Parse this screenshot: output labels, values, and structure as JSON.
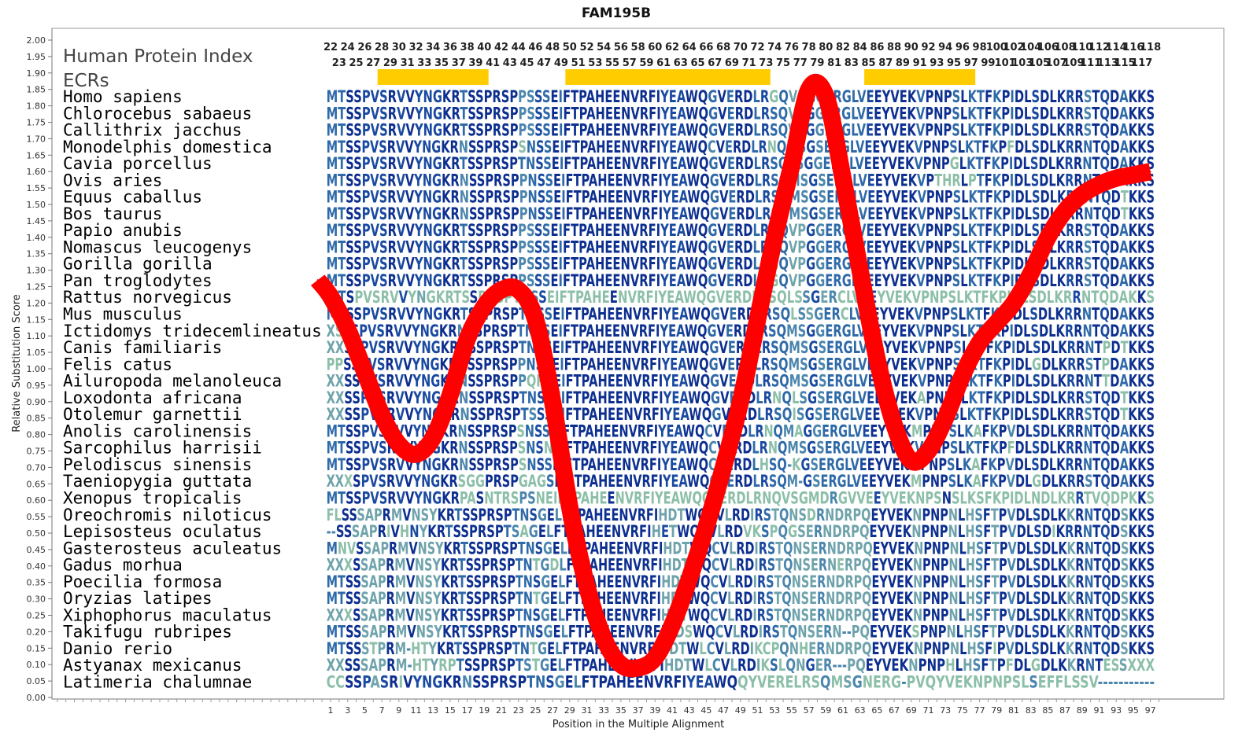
{
  "chart_data": {
    "type": "line",
    "title": "FAM195B",
    "xlabel": "Position in the Multiple Alignment",
    "ylabel": "Relative Substitution Score",
    "ylim": [
      0,
      2.0
    ],
    "xlim": [
      1,
      97
    ],
    "y_ticks": [
      "0.00",
      "0.05",
      "0.10",
      "0.15",
      "0.20",
      "0.25",
      "0.30",
      "0.35",
      "0.40",
      "0.45",
      "0.50",
      "0.55",
      "0.60",
      "0.65",
      "0.70",
      "0.75",
      "0.80",
      "0.85",
      "0.90",
      "0.95",
      "1.00",
      "1.05",
      "1.10",
      "1.15",
      "1.20",
      "1.25",
      "1.30",
      "1.35",
      "1.40",
      "1.45",
      "1.50",
      "1.55",
      "1.60",
      "1.65",
      "1.70",
      "1.75",
      "1.80",
      "1.85",
      "1.90",
      "1.95",
      "2.00"
    ],
    "x_ticks": [
      "1",
      "3",
      "5",
      "7",
      "9",
      "11",
      "13",
      "15",
      "17",
      "19",
      "21",
      "23",
      "25",
      "27",
      "29",
      "31",
      "33",
      "35",
      "37",
      "39",
      "41",
      "43",
      "45",
      "47",
      "49",
      "51",
      "53",
      "55",
      "57",
      "59",
      "61",
      "63",
      "65",
      "67",
      "69",
      "71",
      "73",
      "75",
      "77",
      "79",
      "81",
      "83",
      "85",
      "87",
      "89",
      "91",
      "93",
      "95",
      "97"
    ],
    "series": [
      {
        "color": "#ff0000",
        "x": [
          -0.5,
          1,
          3,
          5,
          7,
          9,
          11,
          13,
          15,
          17,
          19,
          21,
          23,
          25,
          27,
          29,
          31,
          33,
          35,
          37,
          39,
          41,
          43,
          45,
          47,
          49,
          51,
          53,
          55,
          57,
          59,
          61,
          63,
          65,
          67,
          69,
          71,
          73,
          75,
          77,
          79,
          81,
          83,
          85,
          87,
          89,
          91,
          93,
          95,
          97
        ],
        "values": [
          1.27,
          1.22,
          1.12,
          0.99,
          0.86,
          0.77,
          0.74,
          0.79,
          0.92,
          1.09,
          1.19,
          1.24,
          1.24,
          1.15,
          0.9,
          0.58,
          0.34,
          0.18,
          0.1,
          0.09,
          0.12,
          0.22,
          0.36,
          0.52,
          0.7,
          0.9,
          1.15,
          1.4,
          1.62,
          1.85,
          1.83,
          1.58,
          1.3,
          1.03,
          0.83,
          0.72,
          0.75,
          0.85,
          0.98,
          1.08,
          1.14,
          1.2,
          1.29,
          1.4,
          1.48,
          1.53,
          1.56,
          1.58,
          1.59,
          1.6
        ]
      }
    ],
    "grid": false
  },
  "header": {
    "index_label": "Human Protein Index",
    "ecr_label": "ECRs",
    "index_top": [
      "22",
      "24",
      "26",
      "28",
      "30",
      "32",
      "34",
      "36",
      "38",
      "40",
      "42",
      "44",
      "46",
      "48",
      "50",
      "52",
      "54",
      "56",
      "58",
      "60",
      "62",
      "64",
      "66",
      "68",
      "70",
      "72",
      "74",
      "76",
      "78",
      "80",
      "82",
      "84",
      "86",
      "88",
      "90",
      "92",
      "94",
      "96",
      "98",
      "100",
      "102",
      "104",
      "106",
      "108",
      "110",
      "112",
      "114",
      "116",
      "118"
    ],
    "index_bottom": [
      "23",
      "25",
      "27",
      "29",
      "31",
      "33",
      "35",
      "37",
      "39",
      "41",
      "43",
      "45",
      "47",
      "49",
      "51",
      "53",
      "55",
      "57",
      "59",
      "61",
      "63",
      "65",
      "67",
      "69",
      "71",
      "73",
      "75",
      "77",
      "79",
      "81",
      "83",
      "85",
      "87",
      "89",
      "91",
      "93",
      "95",
      "97",
      "99",
      "101",
      "103",
      "105",
      "107",
      "109",
      "111",
      "113",
      "115",
      "117"
    ],
    "ecr_color": "#ffcc00",
    "ecrs": [
      {
        "start": 7,
        "end": 19
      },
      {
        "start": 29,
        "end": 52
      },
      {
        "start": 64,
        "end": 76
      }
    ]
  },
  "alignment": [
    {
      "species": "Homo sapiens",
      "seq": "MTSSPVSRVVYNGKRTSSPRSPPSSSEIFTPAHEENVRFIYEAWQGVERDLRGQVPGGERGLVEEYVEKVPNPSLKTFKPIDLSDLKRRSTQDAKKS"
    },
    {
      "species": "Chlorocebus sabaeus",
      "seq": "MTSSPVSRVVYNGKRTSSPRSPPSSSEIFTPAHEENVRFIYEAWQGVERDLRSQVPGGERGLVEEYVEKVPNPSLKTFKPIDLSDLKRRSTQDAKKS"
    },
    {
      "species": "Callithrix jacchus",
      "seq": "MTSSPVSRVVYNGKRTSSPRSPPSSSEIFTPAHEENVRFIYEAWQGVERDLRSQVPGGERGLVEEYVEKVPNPSLKTFKPIDLSDLKRRSTQDAKKS"
    },
    {
      "species": "Monodelphis domestica",
      "seq": "MTSSPVSRVVYNGKRNSSPRSPSNSSEIFTPAHEENVRFIYEAWQCVERDLRNQMSGSERGLVEEYVEKVPNPSLKTFKPFDLSDLKRRNTQDAKKS"
    },
    {
      "species": "Cavia porcellus",
      "seq": "MTSSPVSRVVYNGKRTSSPRSPTNSSEIFTPAHEENVRFIYEAWQGVERDLRSQLSGGERGLVEEYVEKVPNPGLKTFKPIDLSDLKRRNTQDAKKS"
    },
    {
      "species": "Ovis aries",
      "seq": "MTSSPVSRVVYNGKRNSSPRSPPNSSEIFTPAHEENVRFIYEAWQGVERDLRSQMSGSERGLVEEYVEKVPTHRLPTFKPIDLSDLKRRNTQDAKKS"
    },
    {
      "species": "Equus caballus",
      "seq": "MTSSPVSRVVYNGKRNSSPRSPPNSSEIFTPAHEENVRFIYEAWQGVERDLRSQMSGSERGLVEEYVEKVPNPSLKTFKPIDLSDLKRRNTQDTKKS"
    },
    {
      "species": "Bos taurus",
      "seq": "MTSSPVSRVVYNGKRNSSPRSPPNSSEIFTPAHEENVRFIYEAWQGVERDLRSQMSGSERGLVEEYVEKVPNPSLKTFKPIDLSDLKRRNTQDTKKS"
    },
    {
      "species": "Papio anubis",
      "seq": "MTSSPVSRVVYNGKRTSSPRSPPSSSEIFTPAHEENVRFIYEAWQGVERDLRGQVPGGERGLVEEYVEKVPNPSLKTFKPIDLSDLKRRSTQDAKKS"
    },
    {
      "species": "Nomascus leucogenys",
      "seq": "MTSSPVSRVVYNGKRTSSPRSPPSSSEIFTPAHEENVRFIYEAWQGVERDLRGQVPGGERGLVEEYVEKVPNPSLKTFKPIDLSDLKRRSTQDAKKS"
    },
    {
      "species": "Gorilla gorilla",
      "seq": "MTSSPVSRVVYNGKRTSSPRSPPSSSEIFTPAHEENVRFIYEAWQGVERDLRGQVPGGERGLVEEYVEKVPNPSLKTFKPIDLSDLKRRSTQDAKKS"
    },
    {
      "species": "Pan troglodytes",
      "seq": "MTSSPVSRVVYNGKRTSSPRSPPSSSEIFTPAHEENVRFIYEAWQGVERDLRGQVPGGERGLVEEYVEKVPNPSLKTFKPIDLSDLKRRSTQDAKKS"
    },
    {
      "species": "Rattus norvegicus",
      "seq": "MTSPVSRVVYNGKRTSSPRSPTNSSEIFTPAHEENVRFIYEAWQGVERDLRSQLSSGERCLVEEYVEKVPNPSLKTFKPIDLSDLKRRNTQDAKKS"
    },
    {
      "species": "Mus musculus",
      "seq": "MTSSPVSRVVYNGKRTSSPRSPTNSSEIFTPAHEENVRFIYEAWQGVERDLRSQLSSGERCLVEEYVEKVPNPSLKTFKPIDLSDLKRRNTQDAKKS"
    },
    {
      "species": "Ictidomys tridecemlineatus",
      "seq": "XSSSPVSRVVYNGKRNSSPRSPTNSSEIFTPAHEENVRFIYEAWQGVERDLRSQMSGGERGLVEEYVEKVPNPSLKTFKPIDLSDLKRRNTQDAKKS"
    },
    {
      "species": "Canis familiaris",
      "seq": "XXSSPVSRVVYNGKRNSSPRSPTNSSEIFTPAHEENVRFIYEAWQGVERDLRSQMSGSERGLVEEYVEKVPNPSLKTFKPIDLSDLKRRNTPDTKKS"
    },
    {
      "species": "Felis catus",
      "seq": "PPSSPVSRVVYNGKRNSSPRSPPNSSEIFTPAHEENVRFIYEAWQGVERDLRSQMSGSERGLVEEYVEKVPNPSLKTFKPIDLGDLKRRSTPDAKKS"
    },
    {
      "species": "Ailuropoda melanoleuca",
      "seq": "XXSSPVSRVVYNGKRNSSPRSPPQRSEIFTPAHEENVRFIYEAWQGVERDLRSQMSGSERGLVEEYVEKVPNPSLKTFKPIDLSDLKRRNTTDAKKS"
    },
    {
      "species": "Loxodonta africana",
      "seq": "XXSSPVSRVVYNGKRNSSPRSPTNSSEIFTPAHEENVRFIYEAWQGVERDLRNQLSGSERGLVEEYVEKAPNPSLKTFKPIDLSDLKRRSTQDTKKS"
    },
    {
      "species": "Otolemur garnettii",
      "seq": "XXSSPVSRVVYNGKRNSSPRSPTSSSEIFTPAHEENVRFIYEAWQGVERDLRSQISGSERGLVEEYVEKVPNPSLKTFKPIDLSDLKRRSTQDTKKS"
    },
    {
      "species": "Anolis carolinensis",
      "seq": "MTSSPVSRVVYNGKRNSSPRSPSNSSEIFTPAHEENVRFIYEAWQCVERDLRNQMAGGERGLVEEYVEKMPNPSLKAFKPVDLSDLKRRNTQDAKKS"
    },
    {
      "species": "Sarcophilus harrisii",
      "seq": "MTSSPVSRVVYNGKRNSSPRSPSNSNEIFTPAHEENVRFIYEAWQCVERDLRNQMSGSERGLVEEYVEKVPNPSLKTFKPFDLSDLKRRNTQDAKKS"
    },
    {
      "species": "Pelodiscus sinensis",
      "seq": "MTSSPVSRVVYNGKRNSSPRSPSNSSEIFTPAHEENVRFIYEAWQCVERDLHSQ-KGSERGLVEEYVEKMPNPSLKAFKPVDLSDLKRRNTQDAKKS"
    },
    {
      "species": "Taeniopygia guttata",
      "seq": "XXXSPVSRVVYNGKRSGGPRSPGAGSEIFTPAHEENVRFIYEAWQCVERDLRSQM-GSERGLVEEYVEKMPNPSLKAFKPVDLGDLKRRSTQDAKKS"
    },
    {
      "species": "Xenopus tropicalis",
      "seq": "MTSSPVSRVVYNGKRPASNTRSPSNEIFTPAHEENVRFIYEAWQCVERDLRNQVSGMDRGVVEEYVEKNPSNSLKSFKPIDLNDLKRRTVQDPKKS"
    },
    {
      "species": "Oreochromis niloticus",
      "seq": "FLSSSAPRMVNSYKRTSSPRSPTNSGELFTPAHEENVRFIHDTWQCVLRDIRSTQNSDRNDRPQEYVEKNPNPNLHSFTPVDLSDLKKRNTQDSKKS"
    },
    {
      "species": "Lepisosteus oculatus",
      "seq": "--SSSAPRIVHNYKRTSSPRSPTSAGELFTPAHEENVRFIHETWQCVLRDVKSPQGSERNDRPQEYVEKNPNPNLHSFTPVDLSDIKRRNTQDSKKS"
    },
    {
      "species": "Gasterosteus aculeatus",
      "seq": "MNVSSAPRMVNSYKRTSSPRSPTNSGELFTPAHEENVRFIHDTWQCVLRDIRSTQNSERNDRPQEYVEKNPNPNLHSFTPVDLSDLKKRNTQDSKKS"
    },
    {
      "species": "Gadus morhua",
      "seq": "XXXSSAPRMVNSYKRTSSPRSPTNTGDLFTPAHEENVRFIHDTWQCVLRDIRSTQNSERNERPQEYVEKNPNPNLHSFTPVDLSDLKKRNTQDSKKS"
    },
    {
      "species": "Poecilia formosa",
      "seq": "MTSSSAPRMVNSYKRTSSPRSPTNSGELFTPAHEENVRFIHDTWQCVLRDIRSTQNSERNDRPQEYVEKNPNPNLHSFTPVDLSDLKKRNTQDSKKS"
    },
    {
      "species": "Oryzias latipes",
      "seq": "MTSSSAPRMVNSYKRTSSPRSPTNTGELFTPAHEENVRFIHDTWQCVLRDIRSTQNSERNDRPQEYVEKNPNPNLHSFTPVDLSDLKKRNTQDSKKS"
    },
    {
      "species": "Xiphophorus maculatus",
      "seq": "XXXSSAPRMVNSYKRTSSPRSPTNSGELFTPAHEENVRFIHDTWQCVLRDIRSTQNSERNDRPQEYVEKNPNPNLHSFTPVDLSDLKKRNTQDSKKS"
    },
    {
      "species": "Takifugu rubripes",
      "seq": "MTSSSAPRMVNSYKRTSSPRSPTNSGELFTPAHEENVRFIHDSWQCVLRDIRSTQNSERN--PQEYVEKSPNPNLHSFTPVDLSDLKKRNTQDSKKS"
    },
    {
      "species": "Danio rerio",
      "seq": "MTSSSTPRM-HTYKRTSSPRSPTNTGELFTPAHEENVRFIHDTWLCVLRDIKCPQNHERNDRPQEYVEKNPNPNLHSFIPVDLSDLKKRNTQDSKKS"
    },
    {
      "species": "Astyanax mexicanus",
      "seq": "XXSSSAPRM-HTYRPTSSPRSPTSTGELFTPAHEENVRFIHDTWLCVLRDIKSLQNGER---PQEYVEKNPNPHLHSFTPFDLGDLKKRNTESSXXX"
    },
    {
      "species": "Latimeria chalumnae",
      "seq": "CCSSPASRIVYNGKRNSSPRSPTNSGELFTPAHEENVRFIYEAWQQYVERELRSQMSGNERG-PVQYVEKNPNPSLSEFFLSSV-----------"
    }
  ]
}
